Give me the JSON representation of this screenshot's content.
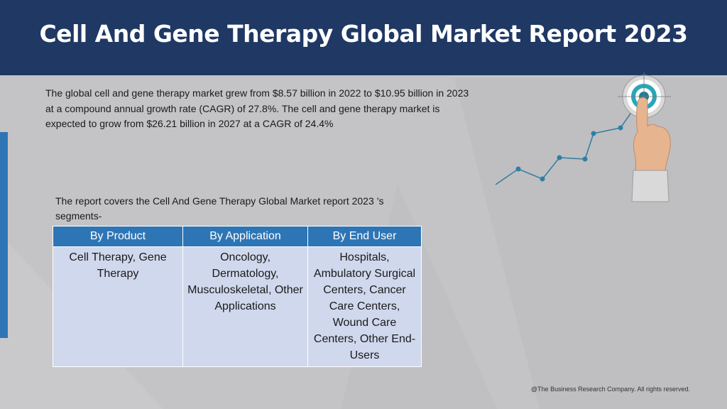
{
  "header": {
    "title": "Cell And Gene Therapy Global Market Report 2023"
  },
  "intro": {
    "text": "The global cell and gene therapy market grew from $8.57 billion in 2022 to $10.95 billion in 2023 at a compound annual growth rate (CAGR) of 27.8%. The cell and gene therapy market is expected to grow from $26.21 billion in 2027 at a CAGR of 24.4%"
  },
  "segments": {
    "lead": "The report covers the Cell And Gene Therapy Global Market report 2023 ’s segments-",
    "headers": [
      "By Product",
      "By Application",
      "By End User"
    ],
    "cells": [
      "Cell Therapy, Gene Therapy",
      "Oncology, Dermatology, Musculoskeletal, Other Applications",
      "Hospitals, Ambulatory Surgical Centers, Cancer Care Centers, Wound Care Centers, Other End-Users"
    ]
  },
  "footer": {
    "copyright": "@The Business Research Company. All rights reserved."
  },
  "colors": {
    "header_bg": "#1f3864",
    "accent_blue": "#2e75b6",
    "table_cell_bg": "#d0d8ed",
    "page_bg": "#c4c4c6"
  },
  "icons": {
    "decoration": "target-growth-chart-icon"
  }
}
